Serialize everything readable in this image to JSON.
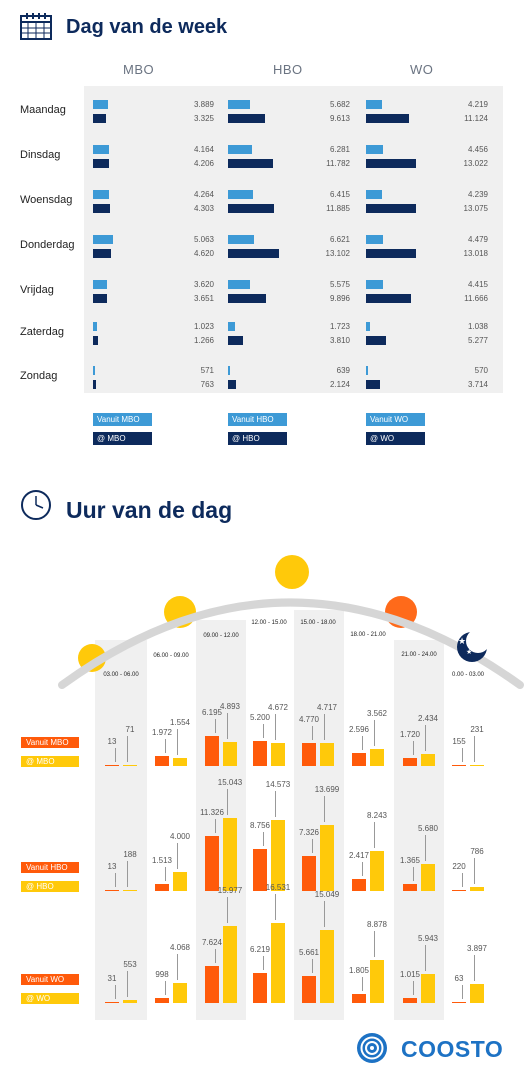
{
  "week": {
    "title": "Dag van de week",
    "columns": [
      "MBO",
      "HBO",
      "WO"
    ],
    "legend": [
      [
        "Vanuit MBO",
        "@ MBO"
      ],
      [
        "Vanuit HBO",
        "@ HBO"
      ],
      [
        "Vanuit WO",
        "@ WO"
      ]
    ]
  },
  "hours": {
    "title": "Uur van de dag",
    "groups": [
      {
        "from": "Vanuit MBO",
        "at": "@ MBO"
      },
      {
        "from": "Vanuit HBO",
        "at": "@ HBO"
      },
      {
        "from": "Vanuit WO",
        "at": "@ WO"
      }
    ]
  },
  "logo": "COOSTO",
  "colors": {
    "light_blue": "#3d9ad6",
    "dark_blue": "#0d2a5c",
    "orange": "#ff5a0a",
    "yellow": "#ffc90a"
  },
  "chart_data": [
    {
      "type": "bar",
      "title": "Dag van de week",
      "categories": [
        "Maandag",
        "Dinsdag",
        "Woensdag",
        "Donderdag",
        "Vrijdag",
        "Zaterdag",
        "Zondag"
      ],
      "panels": [
        {
          "name": "MBO",
          "series": [
            {
              "name": "Vanuit MBO",
              "values": [
                3889,
                4164,
                4264,
                5063,
                3620,
                1023,
                571
              ],
              "labels": [
                "3.889",
                "4.164",
                "4.264",
                "5.063",
                "3.620",
                "1.023",
                "571"
              ]
            },
            {
              "name": "@ MBO",
              "values": [
                3325,
                4206,
                4303,
                4620,
                3651,
                1266,
                763
              ],
              "labels": [
                "3.325",
                "4.206",
                "4.303",
                "4.620",
                "3.651",
                "1.266",
                "763"
              ]
            }
          ]
        },
        {
          "name": "HBO",
          "series": [
            {
              "name": "Vanuit HBO",
              "values": [
                5682,
                6281,
                6415,
                6621,
                5575,
                1723,
                639
              ],
              "labels": [
                "5.682",
                "6.281",
                "6.415",
                "6.621",
                "5.575",
                "1.723",
                "639"
              ]
            },
            {
              "name": "@ HBO",
              "values": [
                9613,
                11782,
                11885,
                13102,
                9896,
                3810,
                2124
              ],
              "labels": [
                "9.613",
                "11.782",
                "11.885",
                "13.102",
                "9.896",
                "3.810",
                "2.124"
              ]
            }
          ]
        },
        {
          "name": "WO",
          "series": [
            {
              "name": "Vanuit WO",
              "values": [
                4219,
                4456,
                4239,
                4479,
                4415,
                1038,
                570
              ],
              "labels": [
                "4.219",
                "4.456",
                "4.239",
                "4.479",
                "4.415",
                "1.038",
                "570"
              ]
            },
            {
              "name": "@ WO",
              "values": [
                11124,
                13022,
                13075,
                13018,
                11666,
                5277,
                3714
              ],
              "labels": [
                "11.124",
                "13.022",
                "13.075",
                "13.018",
                "11.666",
                "5.277",
                "3.714"
              ]
            }
          ]
        }
      ]
    },
    {
      "type": "bar",
      "title": "Uur van de dag",
      "categories": [
        "03.00 - 06.00",
        "06.00 - 09.00",
        "09.00 - 12.00",
        "12.00 - 15.00",
        "15.00 - 18.00",
        "18.00 - 21.00",
        "21.00 - 24.00",
        "0.00 - 03.00"
      ],
      "groups": [
        {
          "name": "MBO",
          "series": [
            {
              "name": "Vanuit MBO",
              "values": [
                13,
                1972,
                6195,
                5200,
                4770,
                2596,
                1720,
                155
              ],
              "labels": [
                "13",
                "1.972",
                "6.195",
                "5.200",
                "4.770",
                "2.596",
                "1.720",
                "155"
              ]
            },
            {
              "name": "@ MBO",
              "values": [
                71,
                1554,
                4893,
                4672,
                4717,
                3562,
                2434,
                231
              ],
              "labels": [
                "71",
                "1.554",
                "4.893",
                "4.672",
                "4.717",
                "3.562",
                "2.434",
                "231"
              ]
            }
          ]
        },
        {
          "name": "HBO",
          "series": [
            {
              "name": "Vanuit HBO",
              "values": [
                13,
                1513,
                11326,
                8756,
                7326,
                2417,
                1365,
                220
              ],
              "labels": [
                "13",
                "1.513",
                "11.326",
                "8.756",
                "7.326",
                "2.417",
                "1.365",
                "220"
              ]
            },
            {
              "name": "@ HBO",
              "values": [
                188,
                4000,
                15043,
                14573,
                13699,
                8243,
                5680,
                786
              ],
              "labels": [
                "188",
                "4.000",
                "15.043",
                "14.573",
                "13.699",
                "8.243",
                "5.680",
                "786"
              ]
            }
          ]
        },
        {
          "name": "WO",
          "series": [
            {
              "name": "Vanuit WO",
              "values": [
                31,
                998,
                7624,
                6219,
                5661,
                1805,
                1015,
                63
              ],
              "labels": [
                "31",
                "998",
                "7.624",
                "6.219",
                "5.661",
                "1.805",
                "1.015",
                "63"
              ]
            },
            {
              "name": "@ WO",
              "values": [
                553,
                4068,
                15977,
                16531,
                15049,
                8878,
                5943,
                3897
              ],
              "labels": [
                "553",
                "4.068",
                "15.977",
                "16.531",
                "15.049",
                "8.878",
                "5.943",
                "3.897"
              ]
            }
          ]
        }
      ]
    }
  ]
}
